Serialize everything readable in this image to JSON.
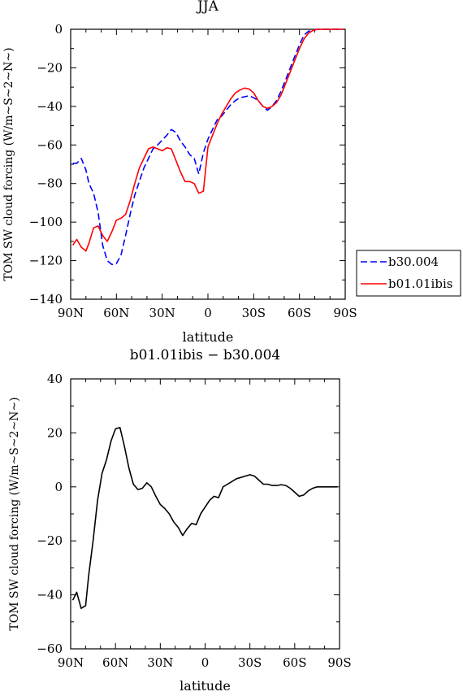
{
  "chart_data": [
    {
      "type": "line",
      "title": "JJA",
      "xlabel": "latitude",
      "ylabel": "TOM SW cloud forcing (W/m~S~2~N~)",
      "xlim": [
        90,
        -90
      ],
      "ylim": [
        -140,
        0
      ],
      "xticks": [
        90,
        60,
        30,
        0,
        -30,
        -60,
        -90
      ],
      "xtick_labels": [
        "90N",
        "60N",
        "30N",
        "0",
        "30S",
        "60S",
        "90S"
      ],
      "yticks": [
        0,
        -20,
        -40,
        -60,
        -80,
        -100,
        -120,
        -140
      ],
      "ytick_labels": [
        "0",
        "−20",
        "−40",
        "−60",
        "−80",
        "−100",
        "−120",
        "−140"
      ],
      "legend_position": "right",
      "series": [
        {
          "name": "b30.004",
          "color": "#0000ff",
          "dash": "dashed",
          "x": [
            88.6,
            86,
            83,
            80,
            78,
            75,
            72,
            69,
            66,
            63,
            60,
            57,
            54,
            51,
            48,
            45,
            42,
            39,
            36,
            33,
            30,
            27,
            24,
            21,
            18,
            15,
            12,
            9,
            6,
            3,
            0,
            -3,
            -6,
            -9,
            -12,
            -15,
            -18,
            -21,
            -24,
            -27,
            -30,
            -33,
            -36,
            -39,
            -42,
            -45,
            -48,
            -51,
            -54,
            -57,
            -60,
            -63,
            -66,
            -69,
            -72,
            -75,
            -78,
            -81,
            -84,
            -87,
            -88.6
          ],
          "y": [
            -69.5,
            -69.5,
            -67,
            -73,
            -80,
            -85,
            -95,
            -112,
            -120,
            -122,
            -121.5,
            -117,
            -107,
            -96,
            -86,
            -79,
            -72,
            -67,
            -62,
            -60,
            -57.5,
            -55,
            -52,
            -53.5,
            -58,
            -61,
            -65,
            -67,
            -75,
            -64,
            -57,
            -52,
            -47,
            -45,
            -42,
            -39,
            -37,
            -35.5,
            -35,
            -34.5,
            -35.5,
            -37,
            -40,
            -42,
            -40,
            -37,
            -32,
            -26,
            -20,
            -14,
            -8,
            -3,
            -1,
            -0.2,
            0,
            0,
            0,
            0,
            0,
            0,
            0
          ]
        },
        {
          "name": "b01.01ibis",
          "color": "#ff0000",
          "dash": "solid",
          "x": [
            88.6,
            86,
            83,
            80,
            78,
            75,
            72,
            69,
            66,
            63,
            60,
            57,
            54,
            51,
            48,
            45,
            42,
            39,
            36,
            33,
            30,
            27,
            24,
            21,
            18,
            15,
            12,
            9,
            6,
            3,
            0,
            -3,
            -6,
            -9,
            -12,
            -15,
            -18,
            -21,
            -24,
            -27,
            -30,
            -33,
            -36,
            -39,
            -42,
            -45,
            -48,
            -51,
            -54,
            -57,
            -60,
            -63,
            -66,
            -69,
            -72,
            -75,
            -78,
            -81,
            -84,
            -87,
            -88.6
          ],
          "y": [
            -112,
            -109,
            -113,
            -115,
            -111,
            -103,
            -102,
            -107,
            -110,
            -105,
            -99,
            -98,
            -96,
            -89,
            -80,
            -72,
            -67,
            -62,
            -61,
            -62,
            -63,
            -61.5,
            -62,
            -68,
            -74,
            -79,
            -79,
            -80,
            -85,
            -84,
            -61,
            -55,
            -49,
            -44,
            -40,
            -36,
            -33,
            -31.5,
            -30.5,
            -31,
            -33,
            -37,
            -40,
            -41,
            -40,
            -38,
            -34,
            -28,
            -22,
            -16,
            -10,
            -5,
            -2,
            -0.5,
            0,
            0,
            0,
            0,
            0,
            0,
            0
          ]
        }
      ]
    },
    {
      "type": "line",
      "title": "b01.01ibis − b30.004",
      "xlabel": "latitude",
      "ylabel": "TOM SW cloud forcing (W/m~S~2~N~)",
      "xlim": [
        90,
        -90
      ],
      "ylim": [
        -60,
        40
      ],
      "xticks": [
        90,
        60,
        30,
        0,
        -30,
        -60,
        -90
      ],
      "xtick_labels": [
        "90N",
        "60N",
        "30N",
        "0",
        "30S",
        "60S",
        "90S"
      ],
      "yticks": [
        40,
        20,
        0,
        -20,
        -40,
        -60
      ],
      "ytick_labels": [
        "40",
        "20",
        "0",
        "−20",
        "−40",
        "−60"
      ],
      "series": [
        {
          "color": "#000000",
          "dash": "solid",
          "x": [
            88.6,
            86,
            83,
            80,
            78,
            75,
            72,
            69,
            66,
            63,
            60,
            57,
            54,
            51,
            48,
            45,
            42,
            39,
            36,
            33,
            30,
            27,
            24,
            21,
            18,
            15,
            12,
            9,
            6,
            3,
            0,
            -3,
            -6,
            -9,
            -12,
            -15,
            -18,
            -21,
            -24,
            -27,
            -30,
            -33,
            -36,
            -39,
            -42,
            -45,
            -48,
            -51,
            -54,
            -57,
            -60,
            -63,
            -66,
            -69,
            -72,
            -75,
            -78,
            -81,
            -84,
            -87,
            -88.6
          ],
          "y": [
            -42,
            -39,
            -45,
            -44,
            -33,
            -20,
            -5,
            5,
            10,
            17,
            21.5,
            22,
            15,
            7,
            1,
            -1,
            -0.5,
            1.5,
            0,
            -3.5,
            -6.5,
            -8,
            -10,
            -13,
            -15,
            -18,
            -15.5,
            -13.5,
            -14,
            -10,
            -7.5,
            -5,
            -3.5,
            -4,
            0,
            1,
            2,
            3,
            3.5,
            4,
            4.5,
            4,
            2.5,
            1,
            1,
            0.5,
            0.5,
            0.8,
            0.5,
            -0.5,
            -2,
            -3.5,
            -3,
            -1.5,
            -0.5,
            0,
            0,
            0,
            0,
            0,
            0
          ]
        }
      ]
    }
  ]
}
